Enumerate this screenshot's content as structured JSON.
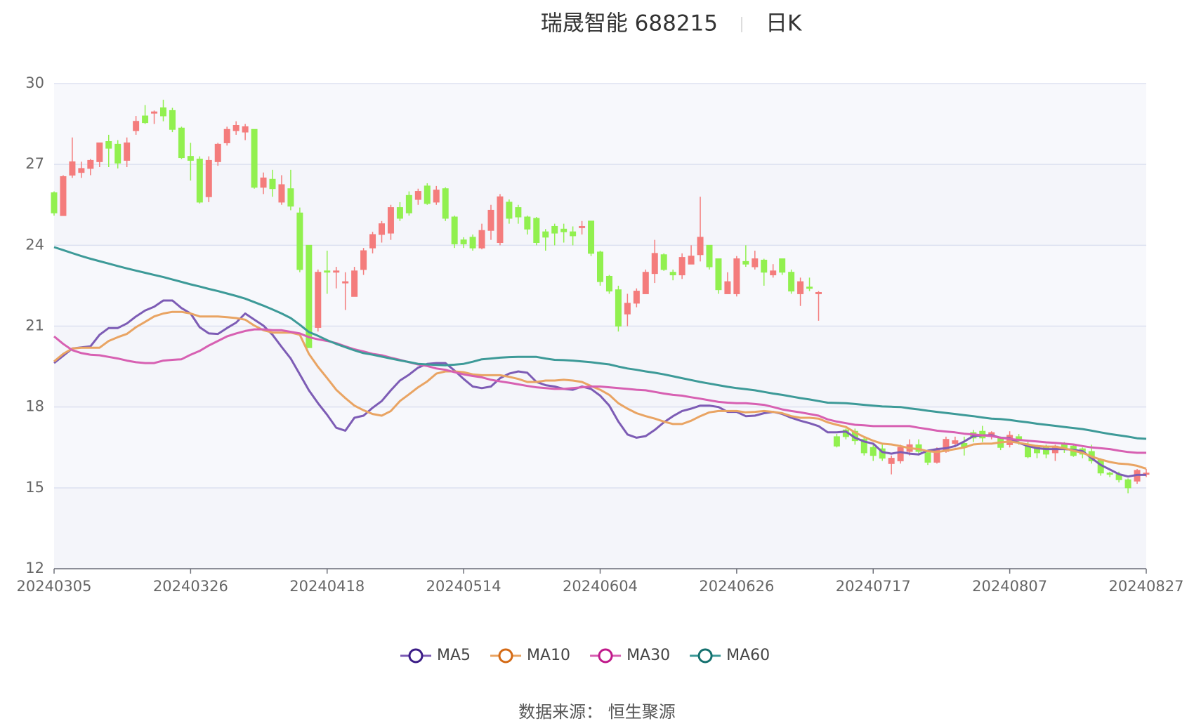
{
  "chart_data": {
    "type": "candlestick",
    "title": "瑞晟智能 688215",
    "subtitle": "日K",
    "source": "数据来源： 恒生聚源",
    "categories": [
      "20240305",
      null,
      null,
      null,
      null,
      null,
      null,
      null,
      null,
      null,
      null,
      null,
      null,
      null,
      null,
      "20240326",
      null,
      null,
      null,
      null,
      null,
      null,
      null,
      null,
      null,
      null,
      null,
      null,
      null,
      null,
      "20240418",
      null,
      null,
      null,
      null,
      null,
      null,
      null,
      null,
      null,
      null,
      null,
      null,
      null,
      null,
      "20240514",
      null,
      null,
      null,
      null,
      null,
      null,
      null,
      null,
      null,
      null,
      null,
      null,
      null,
      null,
      "20240604",
      null,
      null,
      null,
      null,
      null,
      null,
      null,
      null,
      null,
      null,
      null,
      null,
      null,
      null,
      "20240626",
      null,
      null,
      null,
      null,
      null,
      null,
      null,
      null,
      null,
      null,
      null,
      null,
      null,
      null,
      "20240717",
      null,
      null,
      null,
      null,
      null,
      null,
      null,
      null,
      null,
      null,
      null,
      null,
      null,
      null,
      "20240807",
      null,
      null,
      null,
      null,
      null,
      null,
      null,
      null,
      null,
      null,
      null,
      null,
      null,
      null,
      "20240827"
    ],
    "ylim": [
      12,
      30
    ],
    "yticks": [
      12,
      15,
      18,
      21,
      24,
      27,
      30
    ],
    "grid": true,
    "candles": {
      "up_color": "#f47c7c",
      "down_color": "#91f04f",
      "open": [
        25.95,
        25.1,
        26.6,
        26.7,
        26.85,
        27.1,
        27.85,
        27.75,
        27.15,
        28.25,
        28.8,
        28.9,
        29.1,
        29.0,
        28.35,
        27.3,
        27.2,
        25.8,
        27.1,
        27.8,
        28.25,
        28.2,
        28.3,
        26.15,
        26.45,
        25.6,
        26.1,
        25.2,
        24.0,
        20.95,
        23.05,
        23.0,
        22.6,
        22.1,
        23.1,
        23.9,
        24.4,
        24.45,
        25.4,
        25.85,
        25.7,
        26.2,
        25.6,
        26.1,
        25.05,
        24.2,
        24.3,
        23.9,
        24.55,
        24.1,
        25.6,
        25.4,
        25.05,
        25.0,
        24.5,
        24.7,
        24.6,
        24.5,
        24.65,
        24.9,
        23.75,
        22.85,
        22.35,
        21.45,
        21.85,
        22.2,
        22.95,
        23.65,
        23.0,
        22.9,
        23.3,
        23.65,
        24.0,
        23.5,
        22.2,
        22.2,
        23.4,
        23.2,
        23.45,
        22.9,
        23.5,
        23.0,
        22.2,
        22.45,
        22.2,
        null,
        16.9,
        17.15,
        17.1,
        16.8,
        16.5,
        16.45,
        15.9,
        16.0,
        16.35,
        16.6,
        16.3,
        15.95,
        16.35,
        16.65,
        16.65,
        17.05,
        17.1,
        16.95,
        16.85,
        16.6,
        16.9,
        16.6,
        16.55,
        16.55,
        16.3,
        16.6,
        16.55,
        16.45,
        16.35,
        16.05,
        15.55,
        15.5,
        15.3,
        15.25,
        15.5
      ],
      "close": [
        25.2,
        26.55,
        27.1,
        26.85,
        27.15,
        27.8,
        27.6,
        27.05,
        27.8,
        28.6,
        28.55,
        28.95,
        28.8,
        28.3,
        27.25,
        27.15,
        25.6,
        27.15,
        27.75,
        28.3,
        28.45,
        28.4,
        26.15,
        26.5,
        26.1,
        26.25,
        25.45,
        23.1,
        20.2,
        23.0,
        23.0,
        23.05,
        22.65,
        23.05,
        23.8,
        24.4,
        24.8,
        25.4,
        25.0,
        25.2,
        26.0,
        25.55,
        26.05,
        25.0,
        24.05,
        24.05,
        23.9,
        24.55,
        25.3,
        25.8,
        25.0,
        25.05,
        24.6,
        24.1,
        24.3,
        24.45,
        24.5,
        24.35,
        24.7,
        23.7,
        22.65,
        22.3,
        21.0,
        21.85,
        22.3,
        23.0,
        23.7,
        23.1,
        22.9,
        23.55,
        23.6,
        24.3,
        23.2,
        22.35,
        22.65,
        23.5,
        23.3,
        23.5,
        23.0,
        23.05,
        23.0,
        22.3,
        22.65,
        22.4,
        22.25,
        null,
        16.55,
        16.9,
        16.75,
        16.3,
        16.2,
        16.1,
        16.1,
        16.5,
        16.6,
        16.35,
        15.95,
        16.4,
        16.8,
        16.75,
        16.5,
        16.85,
        16.85,
        17.05,
        16.5,
        16.95,
        16.75,
        16.15,
        16.3,
        16.25,
        16.55,
        16.45,
        16.2,
        16.25,
        16.0,
        15.55,
        15.5,
        15.3,
        15.0,
        15.65,
        15.55
      ],
      "low": [
        25.1,
        25.1,
        26.5,
        26.5,
        26.6,
        26.9,
        26.9,
        26.85,
        26.9,
        28.1,
        28.5,
        28.5,
        28.6,
        28.2,
        27.2,
        26.4,
        25.55,
        25.6,
        26.95,
        27.7,
        28.1,
        27.9,
        26.1,
        25.9,
        25.8,
        25.5,
        25.3,
        23.0,
        20.2,
        20.8,
        22.2,
        22.4,
        21.6,
        22.1,
        22.9,
        23.7,
        24.1,
        24.2,
        24.9,
        25.1,
        25.5,
        25.5,
        25.5,
        24.9,
        23.9,
        23.9,
        23.8,
        23.85,
        24.2,
        24.0,
        24.8,
        24.8,
        24.4,
        24.0,
        23.8,
        24.0,
        24.1,
        24.0,
        24.4,
        23.6,
        22.5,
        22.2,
        20.8,
        21.0,
        21.7,
        22.2,
        22.6,
        23.05,
        22.7,
        22.75,
        23.3,
        23.4,
        23.1,
        22.2,
        22.2,
        22.1,
        23.2,
        23.1,
        22.5,
        22.8,
        22.9,
        22.2,
        21.75,
        22.3,
        21.2,
        null,
        16.5,
        16.8,
        16.6,
        16.2,
        16.0,
        16.0,
        15.5,
        15.9,
        16.2,
        16.2,
        15.85,
        15.9,
        16.3,
        16.5,
        16.2,
        16.7,
        16.7,
        16.8,
        16.4,
        16.5,
        16.6,
        16.1,
        16.1,
        16.1,
        16.0,
        16.3,
        16.15,
        16.1,
        15.9,
        15.45,
        15.4,
        15.2,
        14.8,
        15.15,
        15.4
      ],
      "high": [
        26.0,
        26.6,
        28.0,
        27.1,
        27.2,
        27.8,
        28.1,
        27.9,
        28.0,
        28.8,
        29.2,
        29.0,
        29.4,
        29.1,
        28.4,
        27.8,
        27.3,
        27.3,
        27.8,
        28.4,
        28.6,
        28.5,
        28.3,
        26.7,
        26.8,
        26.6,
        26.8,
        25.4,
        24.0,
        23.1,
        23.8,
        23.2,
        23.0,
        23.2,
        23.9,
        24.5,
        24.9,
        25.5,
        25.6,
        26.0,
        26.1,
        26.3,
        26.2,
        26.15,
        25.1,
        24.3,
        24.4,
        24.8,
        25.5,
        25.9,
        25.7,
        25.5,
        25.1,
        25.05,
        24.6,
        24.8,
        24.8,
        24.7,
        24.9,
        24.9,
        23.8,
        22.9,
        22.5,
        22.2,
        22.4,
        23.1,
        24.2,
        23.7,
        23.1,
        23.7,
        24.0,
        25.8,
        24.0,
        23.5,
        23.0,
        23.6,
        24.0,
        23.8,
        23.5,
        23.3,
        23.5,
        23.1,
        22.8,
        22.8,
        22.3,
        null,
        17.0,
        17.2,
        17.2,
        16.9,
        16.6,
        16.6,
        16.2,
        16.6,
        16.8,
        16.8,
        16.4,
        16.5,
        16.9,
        16.9,
        16.9,
        17.15,
        17.3,
        17.1,
        16.9,
        17.1,
        17.0,
        16.7,
        16.6,
        16.6,
        16.6,
        16.7,
        16.6,
        16.5,
        16.6,
        16.1,
        15.6,
        15.6,
        15.35,
        15.7,
        15.7
      ]
    },
    "series": [
      {
        "name": "MA5",
        "color": "#7d5cb5",
        "marker_color": "#3b1c86",
        "values": [
          19.63,
          19.9,
          20.17,
          20.21,
          20.25,
          20.68,
          20.93,
          20.93,
          21.1,
          21.36,
          21.58,
          21.72,
          21.95,
          21.95,
          21.67,
          21.47,
          20.96,
          20.73,
          20.71,
          20.93,
          21.13,
          21.47,
          21.24,
          21.02,
          20.68,
          20.23,
          19.8,
          19.21,
          18.62,
          18.14,
          17.71,
          17.23,
          17.12,
          17.6,
          17.68,
          17.97,
          18.22,
          18.62,
          18.98,
          19.2,
          19.46,
          19.6,
          19.63,
          19.63,
          19.35,
          19.04,
          18.76,
          18.7,
          18.76,
          19.07,
          19.24,
          19.32,
          19.27,
          18.93,
          18.81,
          18.76,
          18.67,
          18.64,
          18.76,
          18.67,
          18.42,
          18.05,
          17.46,
          16.98,
          16.86,
          16.92,
          17.15,
          17.43,
          17.66,
          17.85,
          17.94,
          18.05,
          18.05,
          18.0,
          17.82,
          17.82,
          17.66,
          17.68,
          17.77,
          17.82,
          17.74,
          17.6,
          17.49,
          17.4,
          17.29,
          17.06,
          17.06,
          17.09,
          16.86,
          16.72,
          16.64,
          16.33,
          16.27,
          16.33,
          16.27,
          16.24,
          16.38,
          16.44,
          16.47,
          16.55,
          16.72,
          16.92,
          16.95,
          16.95,
          16.86,
          16.84,
          16.67,
          16.55,
          16.47,
          16.44,
          16.44,
          16.44,
          16.41,
          16.36,
          16.1,
          15.85,
          15.68,
          15.51,
          15.42,
          15.48,
          15.48
        ]
      },
      {
        "name": "MA10",
        "color": "#e9a463",
        "marker_color": "#d46a15",
        "values": [
          19.69,
          19.97,
          20.17,
          20.2,
          20.2,
          20.2,
          20.45,
          20.59,
          20.71,
          20.96,
          21.16,
          21.36,
          21.47,
          21.53,
          21.53,
          21.47,
          21.36,
          21.36,
          21.36,
          21.33,
          21.3,
          21.24,
          21.02,
          20.85,
          20.76,
          20.76,
          20.76,
          20.68,
          19.97,
          19.49,
          19.07,
          18.64,
          18.33,
          18.05,
          17.88,
          17.74,
          17.68,
          17.85,
          18.22,
          18.47,
          18.73,
          18.95,
          19.24,
          19.32,
          19.32,
          19.29,
          19.21,
          19.18,
          19.18,
          19.18,
          19.12,
          19.04,
          18.93,
          18.93,
          18.98,
          18.98,
          19.01,
          18.98,
          18.93,
          18.78,
          18.64,
          18.45,
          18.14,
          17.94,
          17.77,
          17.66,
          17.57,
          17.46,
          17.37,
          17.37,
          17.49,
          17.66,
          17.8,
          17.85,
          17.85,
          17.85,
          17.8,
          17.82,
          17.85,
          17.82,
          17.77,
          17.66,
          17.6,
          17.6,
          17.57,
          17.43,
          17.34,
          17.26,
          17.06,
          16.89,
          16.75,
          16.64,
          16.61,
          16.55,
          16.47,
          16.44,
          16.36,
          16.33,
          16.38,
          16.44,
          16.5,
          16.61,
          16.64,
          16.64,
          16.69,
          16.72,
          16.67,
          16.61,
          16.55,
          16.53,
          16.53,
          16.47,
          16.38,
          16.3,
          16.16,
          16.05,
          15.96,
          15.9,
          15.88,
          15.82,
          15.71
        ]
      },
      {
        "name": "MA30",
        "color": "#d760b2",
        "marker_color": "#c0198a",
        "values": [
          20.62,
          20.34,
          20.11,
          20.0,
          19.94,
          19.92,
          19.86,
          19.8,
          19.72,
          19.66,
          19.63,
          19.63,
          19.72,
          19.75,
          19.77,
          19.94,
          20.08,
          20.28,
          20.45,
          20.62,
          20.73,
          20.82,
          20.88,
          20.88,
          20.85,
          20.85,
          20.79,
          20.73,
          20.59,
          20.51,
          20.45,
          20.37,
          20.25,
          20.14,
          20.06,
          19.97,
          19.92,
          19.83,
          19.75,
          19.66,
          19.58,
          19.52,
          19.43,
          19.38,
          19.29,
          19.21,
          19.15,
          19.1,
          19.01,
          18.95,
          18.9,
          18.84,
          18.78,
          18.73,
          18.7,
          18.67,
          18.67,
          18.7,
          18.73,
          18.76,
          18.76,
          18.73,
          18.7,
          18.67,
          18.64,
          18.62,
          18.56,
          18.5,
          18.45,
          18.42,
          18.36,
          18.31,
          18.25,
          18.19,
          18.16,
          18.14,
          18.14,
          18.11,
          18.08,
          18.0,
          17.91,
          17.85,
          17.8,
          17.74,
          17.68,
          17.54,
          17.46,
          17.4,
          17.34,
          17.32,
          17.29,
          17.29,
          17.29,
          17.29,
          17.29,
          17.23,
          17.18,
          17.12,
          17.09,
          17.06,
          17.01,
          16.98,
          16.95,
          16.92,
          16.86,
          16.81,
          16.78,
          16.75,
          16.72,
          16.69,
          16.67,
          16.64,
          16.61,
          16.55,
          16.5,
          16.47,
          16.44,
          16.38,
          16.33,
          16.3,
          16.3
        ]
      },
      {
        "name": "MA60",
        "color": "#3d9a98",
        "marker_color": "#14706e",
        "values": [
          23.93,
          23.82,
          23.71,
          23.6,
          23.5,
          23.41,
          23.32,
          23.23,
          23.14,
          23.06,
          22.98,
          22.9,
          22.82,
          22.73,
          22.64,
          22.55,
          22.47,
          22.38,
          22.3,
          22.21,
          22.12,
          22.02,
          21.89,
          21.76,
          21.62,
          21.47,
          21.3,
          21.05,
          20.78,
          20.64,
          20.48,
          20.34,
          20.22,
          20.1,
          20.0,
          19.94,
          19.87,
          19.8,
          19.73,
          19.67,
          19.6,
          19.58,
          19.56,
          19.55,
          19.57,
          19.6,
          19.68,
          19.77,
          19.8,
          19.83,
          19.85,
          19.86,
          19.86,
          19.86,
          19.8,
          19.75,
          19.74,
          19.72,
          19.69,
          19.66,
          19.62,
          19.58,
          19.5,
          19.43,
          19.38,
          19.32,
          19.27,
          19.21,
          19.14,
          19.07,
          19.0,
          18.93,
          18.87,
          18.81,
          18.75,
          18.7,
          18.66,
          18.62,
          18.56,
          18.5,
          18.45,
          18.39,
          18.33,
          18.28,
          18.22,
          18.16,
          18.15,
          18.14,
          18.11,
          18.08,
          18.05,
          18.02,
          18.01,
          18.0,
          17.95,
          17.91,
          17.86,
          17.82,
          17.78,
          17.74,
          17.7,
          17.66,
          17.61,
          17.57,
          17.55,
          17.52,
          17.47,
          17.43,
          17.38,
          17.34,
          17.3,
          17.26,
          17.22,
          17.18,
          17.12,
          17.06,
          17.0,
          16.95,
          16.9,
          16.84,
          16.82
        ]
      }
    ]
  }
}
